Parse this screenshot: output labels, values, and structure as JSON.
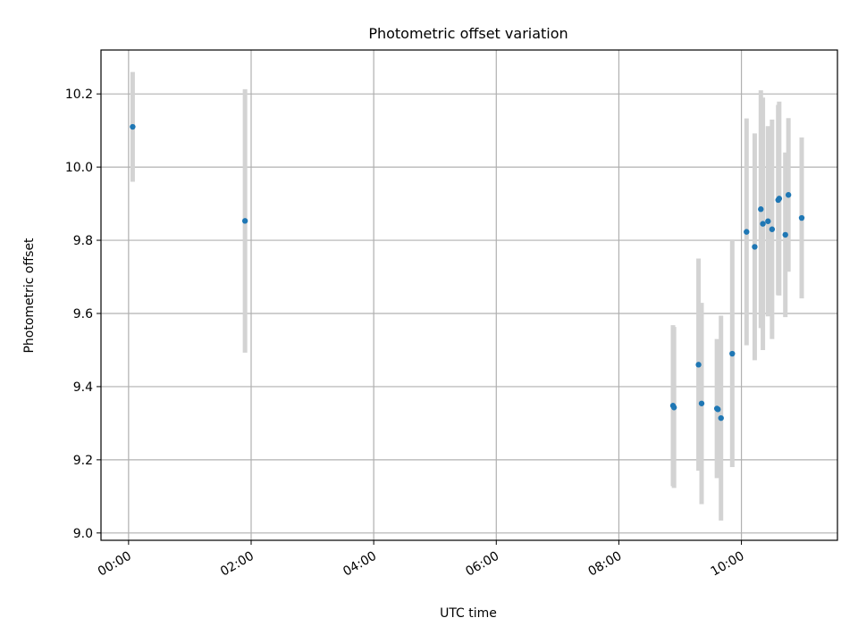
{
  "chart_data": {
    "type": "scatter",
    "title": "Photometric offset variation",
    "xlabel": "UTC time",
    "ylabel": "Photometric offset",
    "x_unit": "UTC time (HH:MM)",
    "xlim": [
      "23:33",
      "11:34"
    ],
    "ylim": [
      8.98,
      10.32
    ],
    "x_ticks": [
      "00:00",
      "02:00",
      "04:00",
      "06:00",
      "08:00",
      "10:00"
    ],
    "y_ticks": [
      "9.0",
      "9.2",
      "9.4",
      "9.6",
      "9.8",
      "10.0",
      "10.2"
    ],
    "grid": true,
    "colors": {
      "point": "#1f77b4",
      "errorbar": "#d3d3d3",
      "grid": "#b0b0b0"
    },
    "points": [
      {
        "x": "00:04",
        "y": 10.11,
        "yerr": 0.15
      },
      {
        "x": "01:54",
        "y": 9.853,
        "yerr": 0.36
      },
      {
        "x": "08:53",
        "y": 9.348,
        "yerr": 0.22
      },
      {
        "x": "08:54",
        "y": 9.343,
        "yerr": 0.22
      },
      {
        "x": "09:18",
        "y": 9.46,
        "yerr": 0.29
      },
      {
        "x": "09:21",
        "y": 9.354,
        "yerr": 0.275
      },
      {
        "x": "09:36",
        "y": 9.34,
        "yerr": 0.19
      },
      {
        "x": "09:37",
        "y": 9.338,
        "yerr": 0.185
      },
      {
        "x": "09:40",
        "y": 9.314,
        "yerr": 0.28
      },
      {
        "x": "09:51",
        "y": 9.49,
        "yerr": 0.31
      },
      {
        "x": "10:05",
        "y": 9.823,
        "yerr": 0.31
      },
      {
        "x": "10:13",
        "y": 9.782,
        "yerr": 0.31
      },
      {
        "x": "10:19",
        "y": 9.885,
        "yerr": 0.325
      },
      {
        "x": "10:21",
        "y": 9.845,
        "yerr": 0.345
      },
      {
        "x": "10:26",
        "y": 9.852,
        "yerr": 0.26
      },
      {
        "x": "10:30",
        "y": 9.83,
        "yerr": 0.3
      },
      {
        "x": "10:36",
        "y": 9.91,
        "yerr": 0.26
      },
      {
        "x": "10:37",
        "y": 9.914,
        "yerr": 0.265
      },
      {
        "x": "10:43",
        "y": 9.815,
        "yerr": 0.225
      },
      {
        "x": "10:46",
        "y": 9.924,
        "yerr": 0.21
      },
      {
        "x": "10:59",
        "y": 9.861,
        "yerr": 0.22
      }
    ]
  }
}
